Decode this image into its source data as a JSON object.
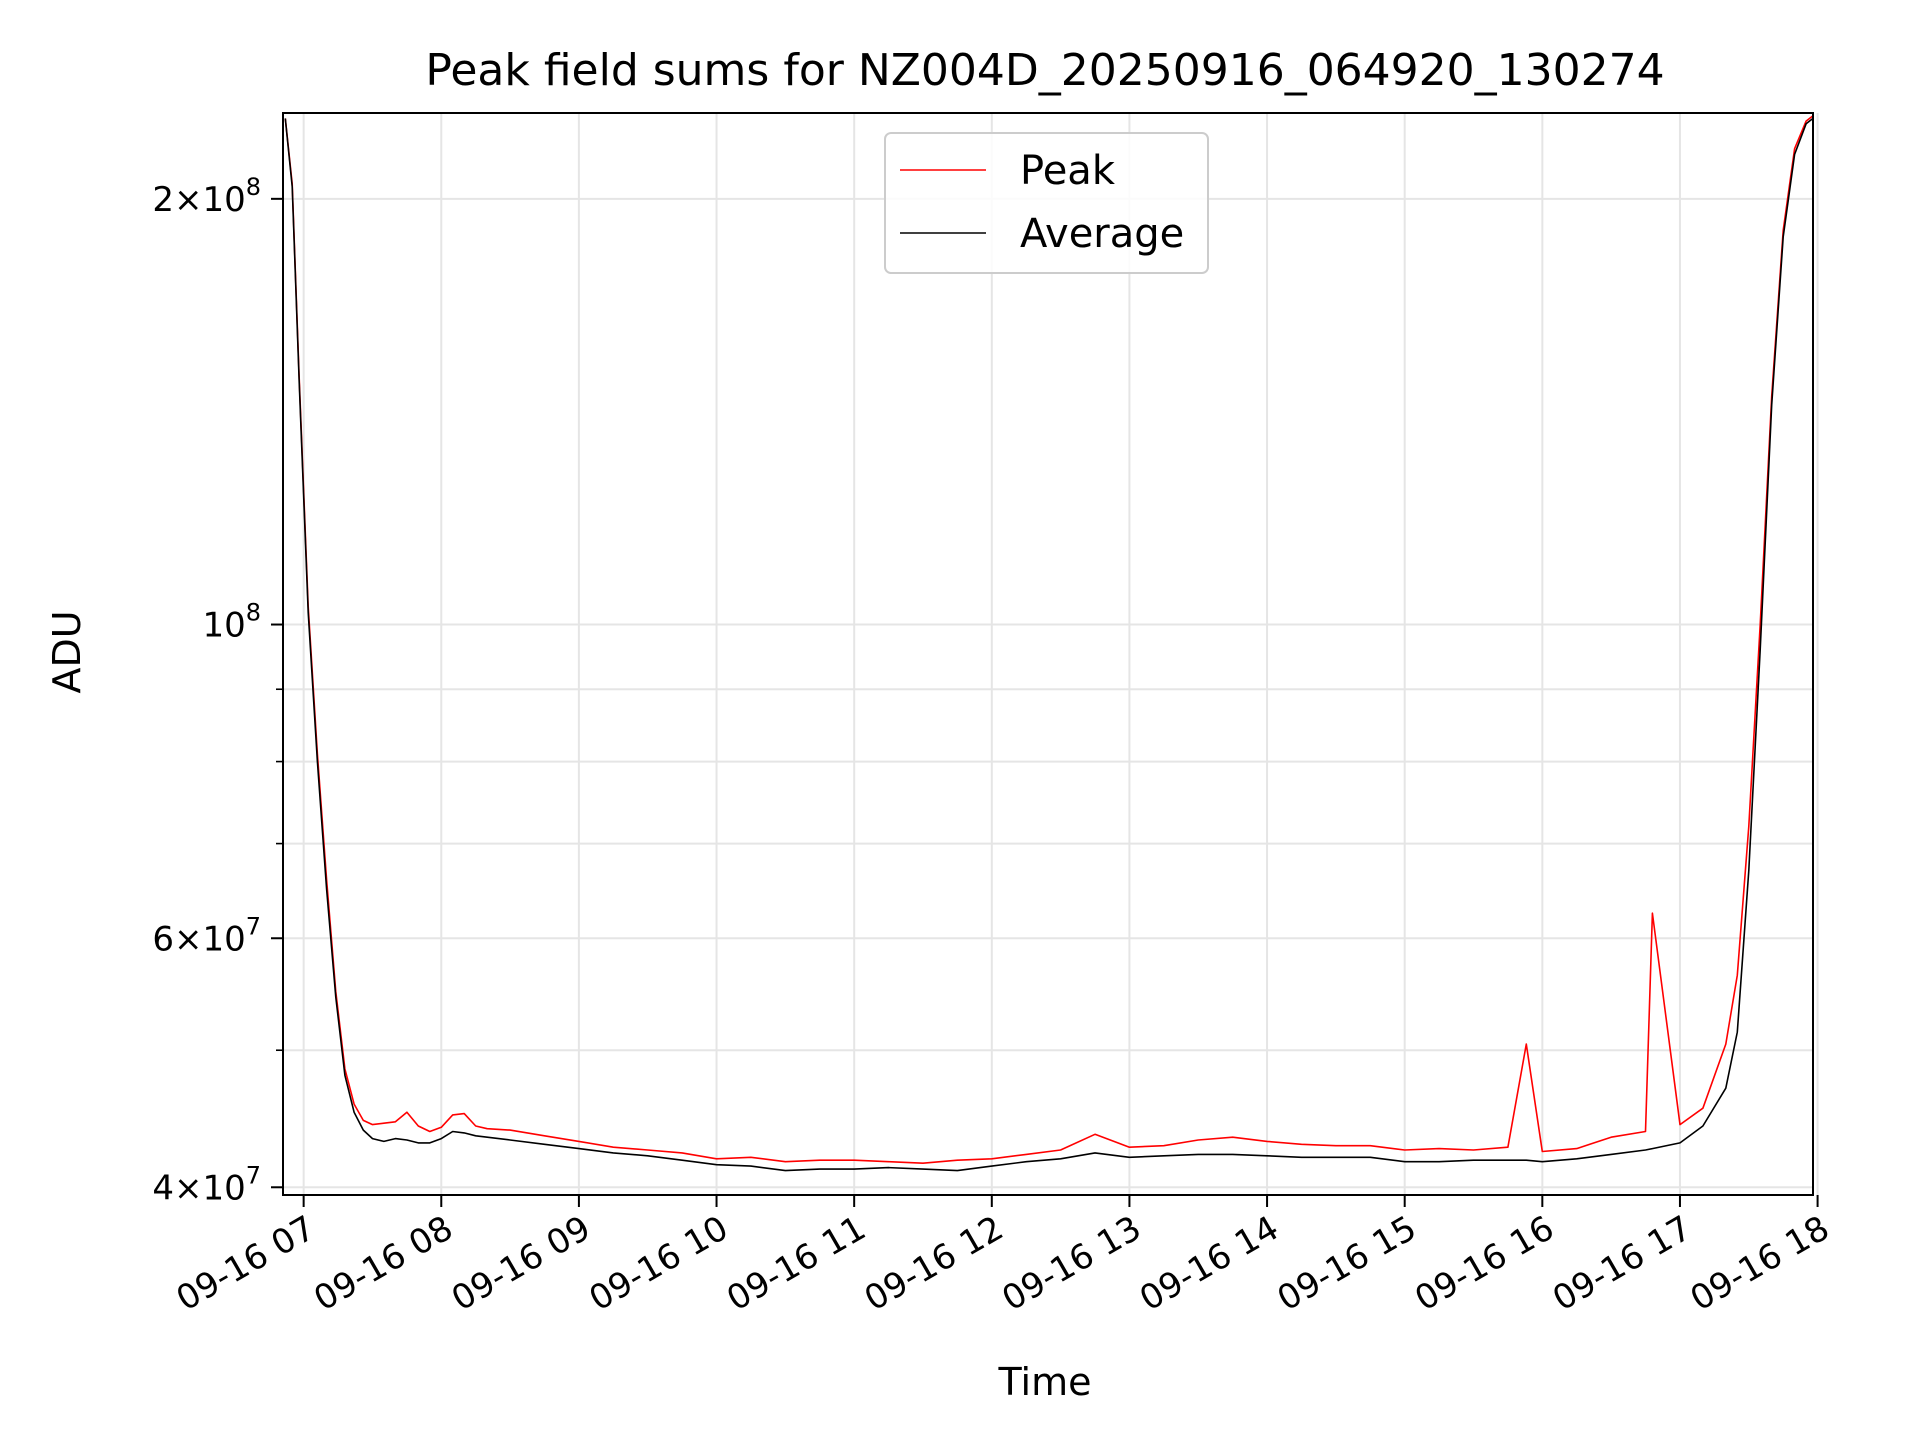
{
  "chart_data": {
    "type": "line",
    "title": "Peak field sums for NZ004D_20250916_064920_130274",
    "xlabel": "Time",
    "ylabel": "ADU",
    "yscale": "log",
    "xlim": [
      "2025-09-16 06:51",
      "2025-09-16 17:58"
    ],
    "ylim": [
      39500000,
      230000000
    ],
    "grid": true,
    "legend_position": "top-center",
    "x_tick_labels": [
      "09-16 07",
      "09-16 08",
      "09-16 09",
      "09-16 10",
      "09-16 11",
      "09-16 12",
      "09-16 13",
      "09-16 14",
      "09-16 15",
      "09-16 16",
      "09-16 17",
      "09-16 18"
    ],
    "y_tick_labels": [
      {
        "value": 40000000,
        "mantissa": "4",
        "exponent": "7"
      },
      {
        "value": 60000000,
        "mantissa": "6",
        "exponent": "7"
      },
      {
        "value": 100000000,
        "mantissa": "",
        "exponent": "8"
      },
      {
        "value": 200000000,
        "mantissa": "2",
        "exponent": "8"
      }
    ],
    "series": [
      {
        "name": "Peak",
        "color": "#ff0000",
        "x": [
          "2025-09-16 06:52",
          "2025-09-16 06:55",
          "2025-09-16 06:58",
          "2025-09-16 07:02",
          "2025-09-16 07:06",
          "2025-09-16 07:10",
          "2025-09-16 07:14",
          "2025-09-16 07:18",
          "2025-09-16 07:22",
          "2025-09-16 07:26",
          "2025-09-16 07:30",
          "2025-09-16 07:35",
          "2025-09-16 07:40",
          "2025-09-16 07:45",
          "2025-09-16 07:50",
          "2025-09-16 07:55",
          "2025-09-16 08:00",
          "2025-09-16 08:05",
          "2025-09-16 08:10",
          "2025-09-16 08:15",
          "2025-09-16 08:20",
          "2025-09-16 08:30",
          "2025-09-16 08:45",
          "2025-09-16 09:00",
          "2025-09-16 09:15",
          "2025-09-16 09:30",
          "2025-09-16 09:45",
          "2025-09-16 10:00",
          "2025-09-16 10:15",
          "2025-09-16 10:30",
          "2025-09-16 10:45",
          "2025-09-16 11:00",
          "2025-09-16 11:15",
          "2025-09-16 11:30",
          "2025-09-16 11:45",
          "2025-09-16 12:00",
          "2025-09-16 12:15",
          "2025-09-16 12:30",
          "2025-09-16 12:45",
          "2025-09-16 13:00",
          "2025-09-16 13:15",
          "2025-09-16 13:30",
          "2025-09-16 13:45",
          "2025-09-16 14:00",
          "2025-09-16 14:15",
          "2025-09-16 14:30",
          "2025-09-16 14:45",
          "2025-09-16 15:00",
          "2025-09-16 15:15",
          "2025-09-16 15:30",
          "2025-09-16 15:45",
          "2025-09-16 15:53",
          "2025-09-16 16:00",
          "2025-09-16 16:15",
          "2025-09-16 16:30",
          "2025-09-16 16:45",
          "2025-09-16 16:48",
          "2025-09-16 17:00",
          "2025-09-16 17:10",
          "2025-09-16 17:20",
          "2025-09-16 17:25",
          "2025-09-16 17:30",
          "2025-09-16 17:35",
          "2025-09-16 17:40",
          "2025-09-16 17:45",
          "2025-09-16 17:50",
          "2025-09-16 17:55",
          "2025-09-16 17:58"
        ],
        "values": [
          228000000,
          205000000,
          150000000,
          103000000,
          81000000,
          66000000,
          55000000,
          48500000,
          45800000,
          44600000,
          44300000,
          44400000,
          44500000,
          45200000,
          44200000,
          43800000,
          44100000,
          45000000,
          45100000,
          44200000,
          44000000,
          43900000,
          43500000,
          43100000,
          42700000,
          42500000,
          42300000,
          41900000,
          42000000,
          41700000,
          41800000,
          41800000,
          41700000,
          41600000,
          41800000,
          41900000,
          42200000,
          42500000,
          43600000,
          42700000,
          42800000,
          43200000,
          43400000,
          43100000,
          42900000,
          42800000,
          42800000,
          42500000,
          42600000,
          42500000,
          42700000,
          50500000,
          42400000,
          42600000,
          43400000,
          43800000,
          62500000,
          44300000,
          45500000,
          50500000,
          56500000,
          72000000,
          100000000,
          145000000,
          190000000,
          217000000,
          227000000,
          229000000
        ]
      },
      {
        "name": "Average",
        "color": "#000000",
        "x": [
          "2025-09-16 06:52",
          "2025-09-16 06:55",
          "2025-09-16 06:58",
          "2025-09-16 07:02",
          "2025-09-16 07:06",
          "2025-09-16 07:10",
          "2025-09-16 07:14",
          "2025-09-16 07:18",
          "2025-09-16 07:22",
          "2025-09-16 07:26",
          "2025-09-16 07:30",
          "2025-09-16 07:35",
          "2025-09-16 07:40",
          "2025-09-16 07:45",
          "2025-09-16 07:50",
          "2025-09-16 07:55",
          "2025-09-16 08:00",
          "2025-09-16 08:05",
          "2025-09-16 08:10",
          "2025-09-16 08:15",
          "2025-09-16 08:20",
          "2025-09-16 08:30",
          "2025-09-16 08:45",
          "2025-09-16 09:00",
          "2025-09-16 09:15",
          "2025-09-16 09:30",
          "2025-09-16 09:45",
          "2025-09-16 10:00",
          "2025-09-16 10:15",
          "2025-09-16 10:30",
          "2025-09-16 10:45",
          "2025-09-16 11:00",
          "2025-09-16 11:15",
          "2025-09-16 11:30",
          "2025-09-16 11:45",
          "2025-09-16 12:00",
          "2025-09-16 12:15",
          "2025-09-16 12:30",
          "2025-09-16 12:45",
          "2025-09-16 13:00",
          "2025-09-16 13:15",
          "2025-09-16 13:30",
          "2025-09-16 13:45",
          "2025-09-16 14:00",
          "2025-09-16 14:15",
          "2025-09-16 14:30",
          "2025-09-16 14:45",
          "2025-09-16 15:00",
          "2025-09-16 15:15",
          "2025-09-16 15:30",
          "2025-09-16 15:45",
          "2025-09-16 15:53",
          "2025-09-16 16:00",
          "2025-09-16 16:15",
          "2025-09-16 16:30",
          "2025-09-16 16:45",
          "2025-09-16 16:48",
          "2025-09-16 17:00",
          "2025-09-16 17:10",
          "2025-09-16 17:20",
          "2025-09-16 17:25",
          "2025-09-16 17:30",
          "2025-09-16 17:35",
          "2025-09-16 17:40",
          "2025-09-16 17:45",
          "2025-09-16 17:50",
          "2025-09-16 17:55",
          "2025-09-16 17:58"
        ],
        "values": [
          228000000,
          204000000,
          149000000,
          102000000,
          80000000,
          65000000,
          54500000,
          48000000,
          45200000,
          43900000,
          43300000,
          43100000,
          43300000,
          43200000,
          43000000,
          43000000,
          43300000,
          43800000,
          43700000,
          43500000,
          43400000,
          43200000,
          42900000,
          42600000,
          42300000,
          42100000,
          41800000,
          41500000,
          41400000,
          41100000,
          41200000,
          41200000,
          41300000,
          41200000,
          41100000,
          41400000,
          41700000,
          41900000,
          42300000,
          42000000,
          42100000,
          42200000,
          42200000,
          42100000,
          42000000,
          42000000,
          42000000,
          41700000,
          41700000,
          41800000,
          41800000,
          41800000,
          41700000,
          41900000,
          42200000,
          42500000,
          42600000,
          43000000,
          44200000,
          47000000,
          51500000,
          67000000,
          96000000,
          143000000,
          188000000,
          215000000,
          226000000,
          228000000
        ]
      }
    ]
  }
}
